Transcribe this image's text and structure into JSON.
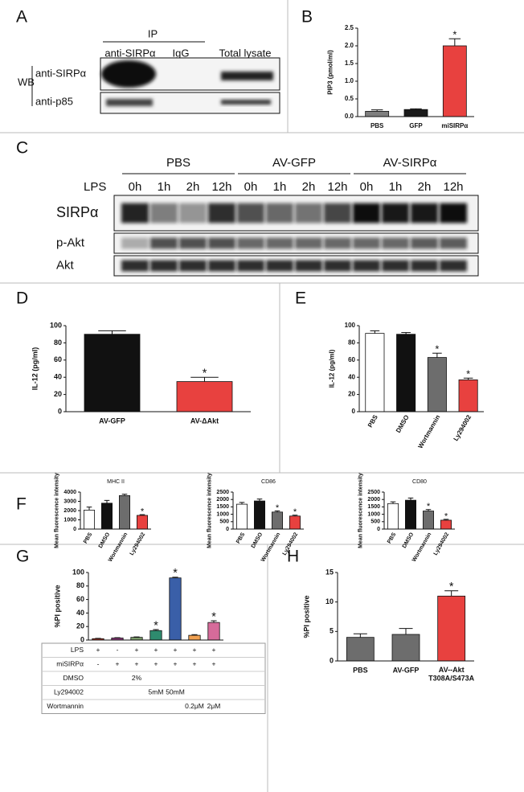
{
  "panel_labels": [
    "A",
    "B",
    "C",
    "D",
    "E",
    "F",
    "G",
    "H"
  ],
  "blot_a": {
    "ip": "IP",
    "lanes": [
      "anti-SIRPα",
      "IgG",
      "Total lysate"
    ],
    "wb": "WB",
    "rows": [
      "anti-SIRPα",
      "anti-p85"
    ]
  },
  "blot_c": {
    "groups": [
      "PBS",
      "AV-GFP",
      "AV-SIRPα"
    ],
    "treatment": "LPS",
    "times": [
      "0h",
      "1h",
      "2h",
      "12h",
      "0h",
      "1h",
      "2h",
      "12h",
      "0h",
      "1h",
      "2h",
      "12h"
    ],
    "rows": [
      "SIRPα",
      "p-Akt",
      "Akt"
    ]
  },
  "chart_data": [
    {
      "type": "bar",
      "ylabel": "PIP3 (pmol/ml)",
      "categories": [
        "PBS",
        "GFP",
        "miSIRPα"
      ],
      "values": [
        0.15,
        0.2,
        2.0
      ],
      "errors": [
        0.04,
        0.02,
        0.2
      ],
      "markers": [
        null,
        null,
        "*"
      ],
      "colors": [
        "#7f7f7f",
        "#1a1a1a",
        "#e8413f"
      ],
      "ylim": [
        0,
        2.5
      ],
      "yticks": [
        {
          "value": 0,
          "label": "0.0"
        },
        0.5,
        {
          "value": 1,
          "label": "1.0"
        },
        1.5,
        {
          "value": 2,
          "label": "2.0"
        },
        2.5
      ]
    },
    {
      "type": "bar",
      "ylabel": "IL-12 (pg/ml)",
      "categories": [
        "AV-GFP",
        "AV-ΔAkt"
      ],
      "values": [
        90,
        35
      ],
      "errors": [
        4,
        5
      ],
      "markers": [
        null,
        "*"
      ],
      "colors": [
        "#111111",
        "#e8413f"
      ],
      "ylim": [
        0,
        100
      ],
      "yticks": [
        0,
        20,
        40,
        60,
        80,
        100
      ]
    },
    {
      "type": "bar",
      "ylabel": "IL-12 (pg/ml)",
      "categories": [
        "PBS",
        "DMSO",
        "Wortmannin",
        "Ly294002"
      ],
      "values": [
        91,
        90,
        63,
        37
      ],
      "errors": [
        3,
        2,
        5,
        2
      ],
      "markers": [
        null,
        null,
        "*",
        "*"
      ],
      "colors": [
        "#ffffff",
        "#111111",
        "#6d6d6d",
        "#e8413f"
      ],
      "ylim": [
        0,
        100
      ],
      "yticks": [
        0,
        20,
        40,
        60,
        80,
        100
      ]
    },
    {
      "type": "bar",
      "title": "MHC II",
      "ylabel": "Mean fluorescence intensity",
      "categories": [
        "PBS",
        "DMSO",
        "Wortmannin",
        "Ly294002"
      ],
      "values": [
        2050,
        2800,
        3620,
        1480
      ],
      "errors": [
        330,
        300,
        150,
        80
      ],
      "markers": [
        null,
        null,
        null,
        "*"
      ],
      "colors": [
        "#ffffff",
        "#111111",
        "#6d6d6d",
        "#e8413f"
      ],
      "ylim": [
        0,
        4000
      ],
      "yticks": [
        0,
        1000,
        2000,
        3000,
        4000
      ]
    },
    {
      "type": "bar",
      "title": "CD86",
      "ylabel": "Mean fluorescence intensity",
      "categories": [
        "PBS",
        "DMSO",
        "Wortmannin",
        "Ly294002"
      ],
      "values": [
        1680,
        1900,
        1150,
        880
      ],
      "errors": [
        120,
        130,
        80,
        60
      ],
      "markers": [
        null,
        null,
        "*",
        "*"
      ],
      "colors": [
        "#ffffff",
        "#111111",
        "#6d6d6d",
        "#e8413f"
      ],
      "ylim": [
        0,
        2500
      ],
      "yticks": [
        0,
        500,
        1000,
        1500,
        2000,
        2500
      ]
    },
    {
      "type": "bar",
      "title": "CD80",
      "ylabel": "Mean fluorescence intensity",
      "categories": [
        "PBS",
        "DMSO",
        "Wortmannin",
        "Ly294002"
      ],
      "values": [
        1720,
        1950,
        1220,
        600
      ],
      "errors": [
        120,
        150,
        100,
        60
      ],
      "markers": [
        null,
        null,
        "*",
        "*"
      ],
      "colors": [
        "#ffffff",
        "#111111",
        "#6d6d6d",
        "#e8413f"
      ],
      "ylim": [
        0,
        2500
      ],
      "yticks": [
        0,
        500,
        1000,
        1500,
        2000,
        2500
      ]
    },
    {
      "type": "bar",
      "ylabel": "%PI positive",
      "values": [
        2,
        3,
        4,
        14,
        92,
        7,
        26
      ],
      "errors": [
        0.5,
        0.5,
        0.6,
        1.5,
        1,
        1,
        2.5
      ],
      "markers": [
        null,
        null,
        null,
        "*",
        "*",
        null,
        "*"
      ],
      "colors": [
        "#c0392b",
        "#8e3b7e",
        "#7a9a6a",
        "#2e8b6e",
        "#3a5fa8",
        "#f0a050",
        "#d66b9a"
      ],
      "ylim": [
        0,
        100
      ],
      "yticks": [
        0,
        20,
        40,
        60,
        80,
        100
      ],
      "table": [
        {
          "label": "LPS",
          "cells": [
            "+",
            "-",
            "+",
            "+",
            "+",
            "+",
            "+"
          ]
        },
        {
          "label": "miSIRPα",
          "cells": [
            "-",
            "+",
            "+",
            "+",
            "+",
            "+",
            "+"
          ]
        },
        {
          "label": "DMSO",
          "cells": [
            null,
            null,
            "2%",
            null,
            null,
            null,
            null
          ]
        },
        {
          "label": "Ly294002",
          "cells": [
            null,
            null,
            null,
            "5mM",
            "50mM",
            null,
            null
          ]
        },
        {
          "label": "Wortmannin",
          "cells": [
            null,
            null,
            null,
            null,
            null,
            "0.2μM",
            "2μM"
          ]
        }
      ]
    },
    {
      "type": "bar",
      "ylabel": "%PI positive",
      "categories": [
        "PBS",
        "AV-GFP",
        "AV--Akt\nT308A/S473A"
      ],
      "values": [
        4,
        4.5,
        11
      ],
      "errors": [
        0.6,
        1,
        0.9
      ],
      "markers": [
        null,
        null,
        "*"
      ],
      "colors": [
        "#6d6d6d",
        "#6d6d6d",
        "#e8413f"
      ],
      "ylim": [
        0,
        15
      ],
      "yticks": [
        0,
        5,
        10,
        15
      ]
    }
  ]
}
